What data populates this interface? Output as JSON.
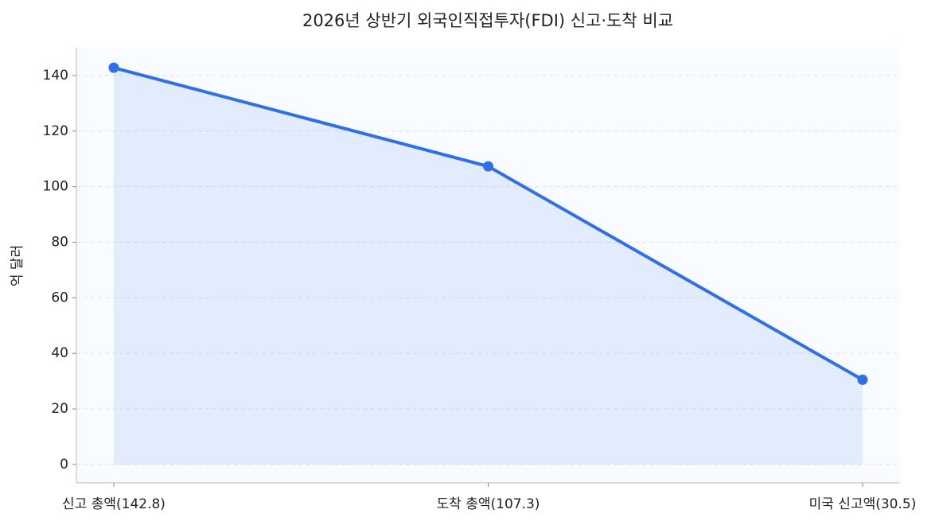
{
  "chart_data": {
    "type": "line",
    "title": "2026년 상반기 외국인직접투자(FDI) 신고·도착 비교",
    "y_label": "억 달러",
    "categories": [
      "신고 총액(142.8)",
      "도착 총액(107.3)",
      "미국 신고액(30.5)"
    ],
    "values": [
      142.8,
      107.3,
      30.5
    ],
    "color": "#2f6fe8",
    "fill_area": true,
    "ylim": [
      -6.6,
      150
    ],
    "yticks": [
      0,
      20,
      40,
      60,
      80,
      100,
      120,
      140
    ],
    "grid": true
  }
}
